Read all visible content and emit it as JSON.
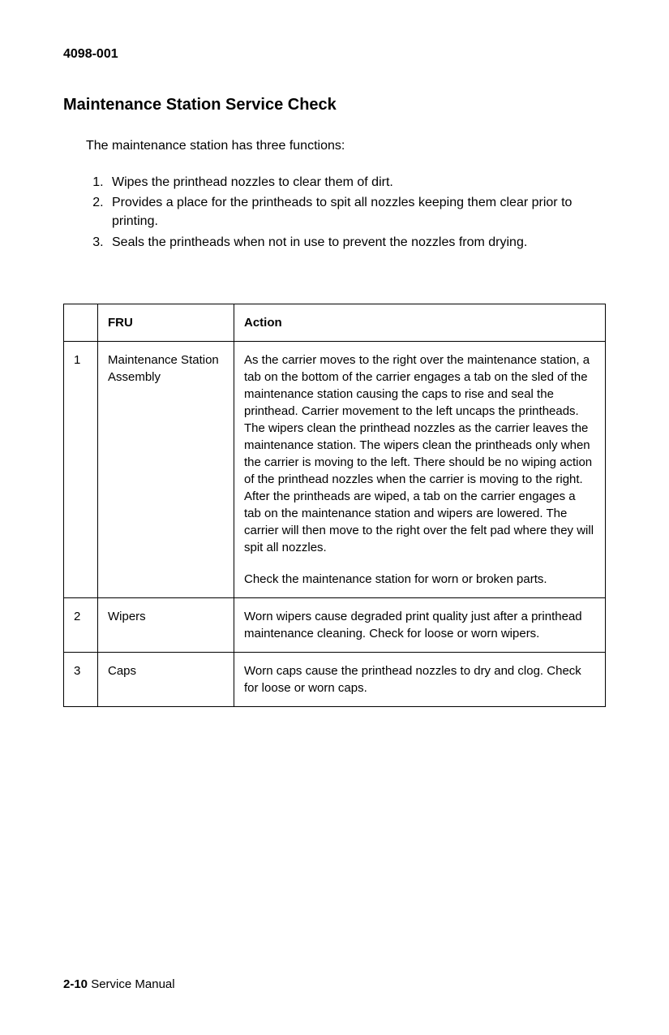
{
  "doc_number": "4098-001",
  "section_title": "Maintenance Station Service Check",
  "intro": "The maintenance station has three functions:",
  "functions": [
    "Wipes the printhead nozzles to clear them of dirt.",
    "Provides a place for the printheads to spit all nozzles keeping them clear prior to printing.",
    "Seals the printheads when not in use to prevent the nozzles from drying."
  ],
  "table": {
    "headers": {
      "num": "",
      "fru": "FRU",
      "action": "Action"
    },
    "rows": [
      {
        "num": "1",
        "fru": "Maintenance Station Assembly",
        "action_p1": "As the carrier moves to the right over the maintenance station, a tab on the bottom of the carrier engages a tab on the sled of the maintenance station causing the caps to rise and seal the printhead. Carrier movement to the left uncaps the printheads. The wipers clean the printhead nozzles as the carrier leaves the maintenance station. The wipers clean the printheads only when the carrier is moving to the left. There should be no wiping action of the printhead nozzles when the carrier is moving to the right. After the printheads are wiped, a tab on the carrier engages a tab on the maintenance station and wipers are lowered. The carrier will then move to the right over the felt pad where they will spit all nozzles.",
        "action_p2": "Check the maintenance station for worn or broken parts."
      },
      {
        "num": "2",
        "fru": "Wipers",
        "action_p1": "Worn wipers cause degraded print quality just after a printhead maintenance cleaning. Check for loose or worn wipers.",
        "action_p2": ""
      },
      {
        "num": "3",
        "fru": "Caps",
        "action_p1": "Worn caps cause the printhead nozzles to dry and clog. Check for loose or worn caps.",
        "action_p2": ""
      }
    ]
  },
  "footer": {
    "page": "2-10",
    "label": "Service Manual"
  }
}
